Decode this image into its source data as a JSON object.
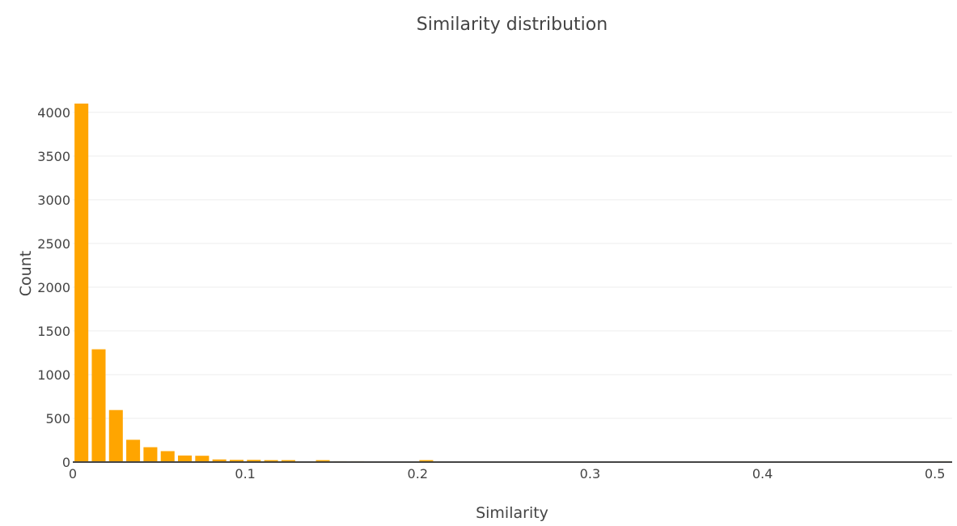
{
  "chart_data": {
    "type": "bar",
    "title": "Similarity distribution",
    "xlabel": "Similarity",
    "ylabel": "Count",
    "xlim": [
      0,
      0.51
    ],
    "ylim": [
      0,
      4100
    ],
    "bin_width": 0.01,
    "x_ticks": [
      0,
      0.1,
      0.2,
      0.3,
      0.4,
      0.5
    ],
    "x_tick_labels": [
      "0",
      "0.1",
      "0.2",
      "0.3",
      "0.4",
      "0.5"
    ],
    "y_ticks": [
      0,
      500,
      1000,
      1500,
      2000,
      2500,
      3000,
      3500,
      4000
    ],
    "y_tick_labels": [
      "0",
      "500",
      "1000",
      "1500",
      "2000",
      "2500",
      "3000",
      "3500",
      "4000"
    ],
    "grid": true,
    "legend": false,
    "bar_color": "#ffa500",
    "grid_color": "#eeeeee",
    "axis_color": "#444444",
    "bin_starts": [
      0,
      0.01,
      0.02,
      0.03,
      0.04,
      0.05,
      0.06,
      0.07,
      0.08,
      0.09,
      0.1,
      0.11,
      0.12,
      0.14,
      0.15,
      0.16,
      0.2,
      0.25,
      0.33,
      0.37,
      0.4,
      0.5
    ],
    "values": [
      4100,
      1290,
      595,
      255,
      170,
      125,
      75,
      72,
      30,
      25,
      25,
      22,
      22,
      22,
      10,
      10,
      22,
      8,
      6,
      6,
      8,
      10
    ]
  }
}
